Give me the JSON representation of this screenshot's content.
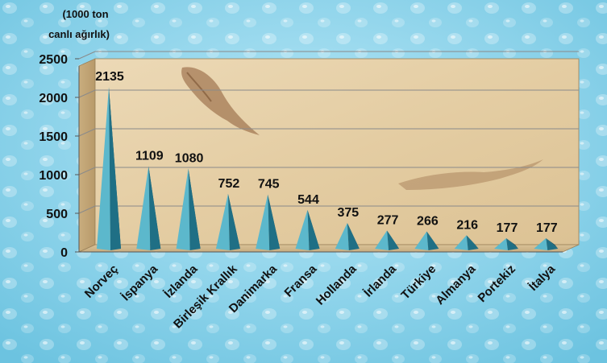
{
  "chart_data": {
    "type": "bar",
    "unit_label_line1": "(1000 ton",
    "unit_label_line2": "canlı ağırlık)",
    "categories": [
      "Norveç",
      "İspanya",
      "İzlanda",
      "Birleşik Krallık",
      "Danimarka",
      "Fransa",
      "Hollanda",
      "İrlanda",
      "Türkiye",
      "Almanya",
      "Portekiz",
      "İtalya"
    ],
    "values": [
      2135,
      1109,
      1080,
      752,
      745,
      544,
      375,
      277,
      266,
      216,
      177,
      177
    ],
    "ylim": [
      0,
      2500
    ],
    "yticks": [
      0,
      500,
      1000,
      1500,
      2000,
      2500
    ],
    "grid": true,
    "legend": "none",
    "bar_shape": "pyramid",
    "colors": {
      "bar_light": "#5cb8cc",
      "bar_dark": "#1f6f85",
      "wall": "#e7d2ac",
      "background": "#8fd3ea"
    }
  }
}
